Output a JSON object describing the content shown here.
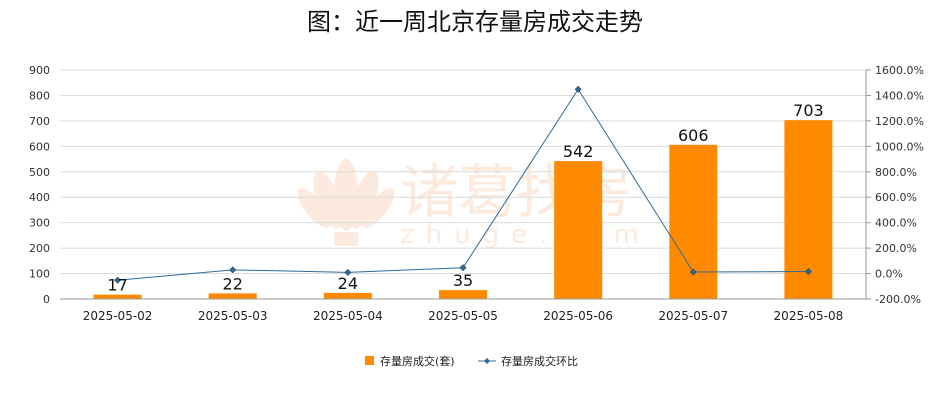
{
  "chart_data": {
    "type": "bar",
    "title": "图：近一周北京存量房成交走势",
    "categories": [
      "2025-05-02",
      "2025-05-03",
      "2025-05-04",
      "2025-05-05",
      "2025-05-06",
      "2025-05-07",
      "2025-05-08"
    ],
    "series": [
      {
        "name": "存量房成交(套)",
        "type": "bar",
        "axis": "left",
        "values": [
          17,
          22,
          24,
          35,
          542,
          606,
          703
        ],
        "color": "#ff8a00"
      },
      {
        "name": "存量房成交环比",
        "type": "line",
        "axis": "right",
        "values": [
          -52,
          29.4,
          9.1,
          45.8,
          1448.6,
          11.8,
          16.0
        ],
        "color": "#2f6b9a"
      }
    ],
    "ylim_left": [
      0,
      900
    ],
    "ylim_right": [
      -200,
      1600
    ],
    "yticks_left": [
      "0",
      "100",
      "200",
      "300",
      "400",
      "500",
      "600",
      "700",
      "800",
      "900"
    ],
    "yticks_right": [
      "-200.0%",
      "0.0%",
      "200.0%",
      "400.0%",
      "600.0%",
      "800.0%",
      "1000.0%",
      "1200.0%",
      "1400.0%",
      "1600.0%"
    ],
    "grid": true,
    "legend_position": "bottom"
  },
  "watermark": {
    "brand": "诸葛找房",
    "domain": "zhuge.com"
  }
}
